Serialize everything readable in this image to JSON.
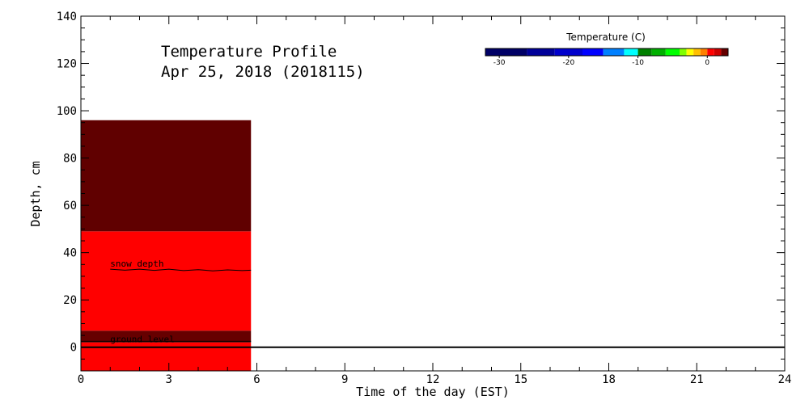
{
  "chart_data": {
    "type": "heatmap",
    "title": "Temperature Profile",
    "subtitle": "Apr 25, 2018 (2018115)",
    "xlabel": "Time of the day (EST)",
    "ylabel": "Depth, cm",
    "xlim": [
      0,
      24
    ],
    "ylim": [
      -10,
      140
    ],
    "xticks": [
      0,
      3,
      6,
      9,
      12,
      15,
      18,
      21,
      24
    ],
    "yticks": [
      0,
      20,
      40,
      60,
      80,
      100,
      120,
      140
    ],
    "grid": false,
    "bands": [
      {
        "x0": 0,
        "x1": 5.8,
        "y0": -10,
        "y1": 2,
        "color": "#ff0000"
      },
      {
        "x0": 0,
        "x1": 5.8,
        "y0": 2,
        "y1": 7,
        "color": "#660000"
      },
      {
        "x0": 0,
        "x1": 5.8,
        "y0": 7,
        "y1": 49,
        "color": "#ff0000"
      },
      {
        "x0": 0,
        "x1": 5.8,
        "y0": 49,
        "y1": 96,
        "color": "#600000"
      }
    ],
    "snow_depth": {
      "label": "snow depth",
      "x": [
        1,
        1.5,
        2,
        2.5,
        3,
        3.5,
        4,
        4.5,
        5,
        5.5,
        5.8
      ],
      "y": [
        33,
        32.6,
        33,
        32.5,
        33,
        32.4,
        32.8,
        32.3,
        32.7,
        32.4,
        32.6
      ]
    },
    "ground_level": {
      "label": "ground level",
      "x": [
        0,
        5.8
      ],
      "y": [
        2.5,
        2.5
      ]
    },
    "zero_line": 0,
    "colorbar": {
      "title": "Temperature (C)",
      "min": -32,
      "max": 3,
      "tick_values": [
        -30,
        -20,
        -10,
        0
      ],
      "tick_labels": [
        "-30",
        "-20",
        "-10",
        "0"
      ],
      "segments": [
        {
          "from": -32,
          "to": -26,
          "color": "#000066"
        },
        {
          "from": -26,
          "to": -22,
          "color": "#000099"
        },
        {
          "from": -22,
          "to": -18,
          "color": "#0000cc"
        },
        {
          "from": -18,
          "to": -15,
          "color": "#0000ff"
        },
        {
          "from": -15,
          "to": -12,
          "color": "#0080ff"
        },
        {
          "from": -12,
          "to": -10,
          "color": "#00ffff"
        },
        {
          "from": -10,
          "to": -8,
          "color": "#008000"
        },
        {
          "from": -8,
          "to": -6,
          "color": "#00b000"
        },
        {
          "from": -6,
          "to": -4,
          "color": "#00ff00"
        },
        {
          "from": -4,
          "to": -3,
          "color": "#80ff00"
        },
        {
          "from": -3,
          "to": -2,
          "color": "#ffff00"
        },
        {
          "from": -2,
          "to": -1,
          "color": "#ffc000"
        },
        {
          "from": -1,
          "to": 0,
          "color": "#ff8000"
        },
        {
          "from": 0,
          "to": 1,
          "color": "#ff0000"
        },
        {
          "from": 1,
          "to": 2,
          "color": "#cc0000"
        },
        {
          "from": 2,
          "to": 3,
          "color": "#660000"
        }
      ]
    }
  }
}
